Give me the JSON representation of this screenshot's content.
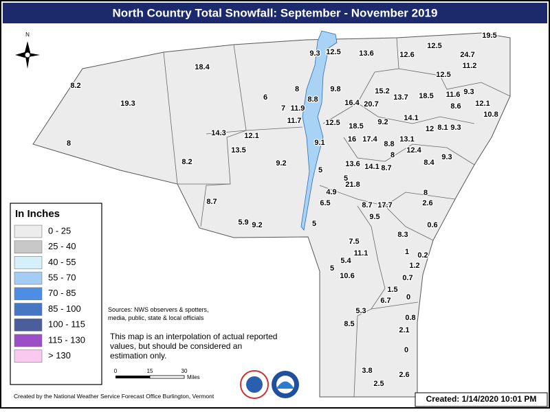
{
  "header": {
    "title": "North Country Total Snowfall: September - November 2019"
  },
  "compass": "N",
  "legend": {
    "title": "In Inches",
    "items": [
      {
        "label": "0 - 25",
        "color": "#ececec"
      },
      {
        "label": "25 - 40",
        "color": "#c8c8c8"
      },
      {
        "label": "40 - 55",
        "color": "#d5effb"
      },
      {
        "label": "55 - 70",
        "color": "#a4ccf4"
      },
      {
        "label": "70 - 85",
        "color": "#4d8de6"
      },
      {
        "label": "85 - 100",
        "color": "#4677c2"
      },
      {
        "label": "100 - 115",
        "color": "#4a5e9b"
      },
      {
        "label": "115 - 130",
        "color": "#9c4ec6"
      },
      {
        "label": "> 130",
        "color": "#f9c9ef"
      }
    ]
  },
  "notes": {
    "sources": [
      "Sources: NWS observers & spotters,",
      "media, public, state & local officials"
    ],
    "disclaimer": [
      "This map is an interpolation of actual reported",
      "values, but should be considered an",
      "estimation only."
    ],
    "credit": "Created by the National Weather Service Forecast Office Burlington, Vermont",
    "created": "Created: 1/14/2020 10:01 PM"
  },
  "scale": {
    "ticks": [
      "0",
      "15",
      "30"
    ],
    "unit": "Miles"
  },
  "points": [
    "19.5",
    "12.5",
    "24.7",
    "11.2",
    "9.3",
    "12.5",
    "13.6",
    "12.6",
    "18.4",
    "12.5",
    "8.2",
    "9.8",
    "15.2",
    "8",
    "13.7",
    "18.5",
    "11.6",
    "9.3",
    "6",
    "8.8",
    "16.4",
    "20.7",
    "8.6",
    "12.1",
    "19.3",
    "7",
    "11.9",
    "10.8",
    "14.1",
    "11.7",
    "12.5",
    "9.2",
    "18.5",
    "12",
    "8.1",
    "9.3",
    "14.3",
    "12.1",
    "16",
    "17.4",
    "13.1",
    "9.1",
    "8.8",
    "8",
    "13.5",
    "12.4",
    "8",
    "8.2",
    "9.2",
    "9.3",
    "8.4",
    "13.6",
    "14.1",
    "8.7",
    "5",
    "21.8",
    "4.9",
    "8",
    "5",
    "6.5",
    "2.6",
    "8.7",
    "8.7",
    "17.7",
    "9.5",
    "5.9",
    "9.2",
    "5",
    "0.6",
    "8.3",
    "7.5",
    "1",
    "0.2",
    "11.1",
    "5.4",
    "1.2",
    "5",
    "10.6",
    "0.7",
    "1.5",
    "0",
    "6.7",
    "5.3",
    "0.8",
    "8.5",
    "2.1",
    "0",
    "3.8",
    "2.6",
    "2.5"
  ]
}
